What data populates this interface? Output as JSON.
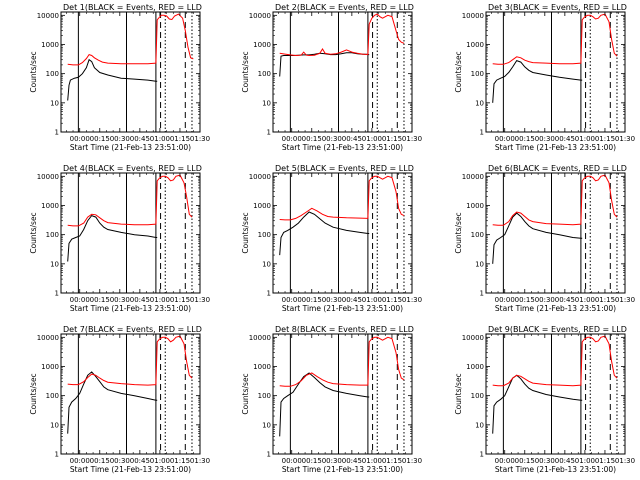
{
  "figure": {
    "ylabel": "Counts/sec",
    "xlabel": "Start Time (21-Feb-13 23:51:00)"
  },
  "common": {
    "type": "line",
    "x_unit": "minutes since 23:51:00",
    "xlim": [
      -5,
      99
    ],
    "ylim": [
      1,
      13000
    ],
    "y_scale": "log",
    "x_ticks": [
      9,
      24,
      39,
      54,
      69,
      84,
      99
    ],
    "x_tick_labels": [
      "00:00",
      "00:15",
      "00:30",
      "00:45",
      "01:00",
      "01:15",
      "01:30"
    ],
    "y_ticks": [
      1,
      10,
      100,
      1000,
      10000
    ],
    "y_tick_labels": [
      "1",
      "10",
      "100",
      "1000",
      "10000"
    ],
    "colors": {
      "events": "#000000",
      "lld": "#ff0000"
    }
  },
  "chart_data": [
    {
      "type": "line",
      "title": "Det 1(BLACK = Events, RED = LLD",
      "vlines_solid": [
        8,
        44,
        66
      ],
      "vlines_dash": [
        69.5,
        88
      ],
      "vlines_dot": [
        73,
        93
      ],
      "series": [
        {
          "name": "Events",
          "x": [
            0,
            1,
            2,
            5,
            8,
            11,
            14,
            16,
            18,
            20,
            24,
            30,
            40,
            50,
            60,
            66,
            67
          ],
          "y": [
            12,
            40,
            60,
            70,
            75,
            100,
            160,
            300,
            260,
            160,
            110,
            90,
            70,
            65,
            60,
            55,
            55
          ]
        },
        {
          "name": "LLD",
          "x": [
            0,
            4,
            8,
            11,
            14,
            16,
            18,
            20,
            23,
            26,
            30,
            40,
            50,
            60,
            66,
            67,
            69,
            70,
            72,
            74,
            76,
            78,
            80,
            83,
            86,
            88,
            90,
            92,
            94
          ],
          "y": [
            210,
            200,
            200,
            240,
            330,
            450,
            420,
            350,
            290,
            250,
            230,
            220,
            220,
            220,
            230,
            7000,
            9000,
            10000,
            10000,
            9500,
            7500,
            7200,
            9500,
            11000,
            8000,
            3000,
            800,
            350,
            320
          ]
        }
      ]
    },
    {
      "type": "line",
      "title": "Det 2(BLACK = Events, RED = LLD",
      "vlines_solid": [
        8,
        44,
        66
      ],
      "vlines_dash": [
        69.5,
        88
      ],
      "vlines_dot": [
        73,
        93
      ],
      "series": [
        {
          "name": "Events",
          "x": [
            0,
            1,
            3,
            6,
            10,
            14,
            18,
            22,
            26,
            30,
            34,
            38,
            42,
            46,
            50,
            54,
            58,
            62,
            65,
            66,
            67
          ],
          "y": [
            80,
            400,
            420,
            420,
            420,
            430,
            440,
            440,
            460,
            500,
            480,
            450,
            450,
            480,
            520,
            520,
            480,
            460,
            460,
            450,
            450
          ]
        },
        {
          "name": "LLD",
          "x": [
            0,
            4,
            8,
            12,
            16,
            18,
            20,
            22,
            26,
            30,
            32,
            34,
            38,
            42,
            46,
            50,
            54,
            58,
            62,
            66,
            67,
            69,
            71,
            73,
            75,
            77,
            79,
            81,
            84,
            87,
            89,
            91,
            93
          ],
          "y": [
            500,
            470,
            440,
            420,
            430,
            550,
            430,
            420,
            430,
            500,
            700,
            500,
            460,
            480,
            550,
            650,
            550,
            500,
            470,
            450,
            5000,
            8000,
            10000,
            11000,
            9000,
            8000,
            9000,
            10000,
            9000,
            3000,
            1500,
            1200,
            1100
          ]
        }
      ]
    },
    {
      "type": "line",
      "title": "Det 3(BLACK = Events, RED = LLD",
      "vlines_solid": [
        8,
        44,
        66
      ],
      "vlines_dash": [
        69.5,
        88
      ],
      "vlines_dot": [
        73,
        93
      ],
      "series": [
        {
          "name": "Events",
          "x": [
            0,
            1,
            3,
            6,
            9,
            12,
            15,
            18,
            21,
            24,
            27,
            30,
            40,
            50,
            60,
            66,
            67
          ],
          "y": [
            10,
            45,
            60,
            70,
            80,
            110,
            170,
            280,
            250,
            170,
            130,
            110,
            90,
            75,
            65,
            60,
            60
          ]
        },
        {
          "name": "LLD",
          "x": [
            0,
            4,
            8,
            12,
            15,
            18,
            21,
            24,
            27,
            30,
            40,
            50,
            60,
            66,
            67,
            69,
            71,
            73,
            75,
            77,
            79,
            81,
            84,
            87,
            89,
            91,
            93
          ],
          "y": [
            220,
            210,
            210,
            240,
            300,
            380,
            350,
            290,
            260,
            240,
            230,
            220,
            220,
            230,
            7000,
            9000,
            10000,
            10000,
            9000,
            7500,
            8000,
            10000,
            11000,
            6000,
            1500,
            500,
            400
          ]
        }
      ]
    },
    {
      "type": "line",
      "title": "Det 4(BLACK = Events, RED = LLD",
      "vlines_solid": [
        8,
        44,
        66
      ],
      "vlines_dash": [
        69.5,
        88
      ],
      "vlines_dot": [
        73,
        93
      ],
      "series": [
        {
          "name": "Events",
          "x": [
            0,
            1,
            3,
            6,
            9,
            12,
            15,
            18,
            21,
            24,
            27,
            30,
            40,
            50,
            60,
            66,
            67
          ],
          "y": [
            12,
            50,
            70,
            80,
            90,
            150,
            300,
            450,
            400,
            250,
            180,
            150,
            120,
            100,
            90,
            80,
            80
          ]
        },
        {
          "name": "LLD",
          "x": [
            0,
            4,
            8,
            12,
            15,
            18,
            21,
            24,
            27,
            30,
            40,
            50,
            60,
            66,
            67,
            69,
            71,
            73,
            75,
            77,
            79,
            81,
            84,
            87,
            89,
            91,
            93
          ],
          "y": [
            210,
            200,
            200,
            250,
            400,
            500,
            480,
            380,
            300,
            260,
            230,
            220,
            220,
            230,
            7000,
            9000,
            10000,
            10000,
            9000,
            7000,
            7500,
            10000,
            11000,
            6000,
            2000,
            500,
            400
          ]
        }
      ]
    },
    {
      "type": "line",
      "title": "Det 5(BLACK = Events, RED = LLD",
      "vlines_solid": [
        8,
        44,
        66
      ],
      "vlines_dash": [
        69.5,
        88
      ],
      "vlines_dot": [
        73,
        93
      ],
      "series": [
        {
          "name": "Events",
          "x": [
            0,
            1,
            3,
            6,
            10,
            14,
            18,
            22,
            26,
            30,
            34,
            40,
            50,
            60,
            66,
            67
          ],
          "y": [
            20,
            80,
            120,
            140,
            180,
            250,
            400,
            600,
            500,
            350,
            250,
            180,
            140,
            120,
            110,
            110
          ]
        },
        {
          "name": "LLD",
          "x": [
            0,
            4,
            8,
            12,
            16,
            20,
            24,
            28,
            32,
            36,
            40,
            50,
            60,
            66,
            67,
            69,
            71,
            73,
            75,
            77,
            79,
            81,
            84,
            87,
            89,
            91,
            93
          ],
          "y": [
            330,
            320,
            320,
            360,
            450,
            600,
            800,
            650,
            500,
            420,
            400,
            380,
            370,
            360,
            7000,
            9000,
            10000,
            10000,
            9000,
            8000,
            9000,
            10000,
            9000,
            3000,
            800,
            500,
            450
          ]
        }
      ]
    },
    {
      "type": "line",
      "title": "Det 6(BLACK = Events, RED = LLD",
      "vlines_solid": [
        8,
        44,
        66
      ],
      "vlines_dash": [
        69.5,
        88
      ],
      "vlines_dot": [
        73,
        93
      ],
      "series": [
        {
          "name": "Events",
          "x": [
            0,
            1,
            3,
            6,
            9,
            12,
            15,
            18,
            21,
            24,
            27,
            30,
            40,
            50,
            60,
            66,
            67
          ],
          "y": [
            10,
            45,
            65,
            80,
            100,
            200,
            400,
            550,
            420,
            280,
            200,
            160,
            120,
            100,
            80,
            75,
            75
          ]
        },
        {
          "name": "LLD",
          "x": [
            0,
            4,
            8,
            12,
            15,
            18,
            21,
            24,
            27,
            30,
            40,
            50,
            60,
            66,
            67,
            69,
            71,
            73,
            75,
            77,
            79,
            81,
            84,
            87,
            89,
            91,
            93
          ],
          "y": [
            220,
            210,
            210,
            280,
            450,
            600,
            550,
            420,
            320,
            280,
            240,
            230,
            220,
            230,
            7000,
            9000,
            10000,
            10000,
            9000,
            7000,
            7500,
            10000,
            11000,
            6000,
            1500,
            500,
            400
          ]
        }
      ]
    },
    {
      "type": "line",
      "title": "Det 7(BLACK = Events, RED = LLD",
      "vlines_solid": [
        8,
        44,
        66
      ],
      "vlines_dash": [
        69.5,
        88
      ],
      "vlines_dot": [
        73,
        93
      ],
      "series": [
        {
          "name": "Events",
          "x": [
            0,
            1,
            3,
            6,
            9,
            12,
            15,
            18,
            21,
            24,
            27,
            30,
            40,
            50,
            60,
            66,
            67
          ],
          "y": [
            5,
            40,
            60,
            80,
            120,
            250,
            500,
            650,
            450,
            300,
            200,
            160,
            120,
            100,
            80,
            70,
            70
          ]
        },
        {
          "name": "LLD",
          "x": [
            0,
            4,
            8,
            12,
            15,
            18,
            21,
            24,
            27,
            30,
            40,
            50,
            60,
            66,
            67,
            69,
            71,
            73,
            75,
            77,
            79,
            81,
            84,
            87,
            89,
            91,
            93
          ],
          "y": [
            250,
            240,
            240,
            300,
            420,
            550,
            500,
            400,
            330,
            290,
            260,
            240,
            230,
            240,
            7000,
            9000,
            10000,
            10000,
            9000,
            7000,
            8000,
            10000,
            11000,
            6000,
            1500,
            500,
            400
          ]
        }
      ]
    },
    {
      "type": "line",
      "title": "Det 8(BLACK = Events, RED = LLD",
      "vlines_solid": [
        8,
        44,
        66
      ],
      "vlines_dash": [
        69.5,
        88
      ],
      "vlines_dot": [
        73,
        93
      ],
      "series": [
        {
          "name": "Events",
          "x": [
            0,
            1,
            3,
            6,
            10,
            14,
            18,
            22,
            26,
            30,
            34,
            40,
            50,
            60,
            66,
            67
          ],
          "y": [
            4,
            60,
            80,
            100,
            130,
            250,
            450,
            600,
            420,
            280,
            200,
            150,
            120,
            100,
            90,
            90
          ]
        },
        {
          "name": "LLD",
          "x": [
            0,
            4,
            8,
            12,
            16,
            20,
            24,
            28,
            32,
            36,
            40,
            50,
            60,
            66,
            67,
            69,
            71,
            73,
            75,
            77,
            79,
            81,
            84,
            87,
            89,
            91,
            93
          ],
          "y": [
            220,
            210,
            210,
            240,
            320,
            500,
            600,
            450,
            350,
            290,
            260,
            240,
            230,
            230,
            7000,
            9000,
            10000,
            10000,
            9000,
            8000,
            9000,
            10000,
            9000,
            3000,
            800,
            400,
            350
          ]
        }
      ]
    },
    {
      "type": "line",
      "title": "Det 9(BLACK = Events, RED = LLD",
      "vlines_solid": [
        8,
        44,
        66
      ],
      "vlines_dash": [
        69.5,
        88
      ],
      "vlines_dot": [
        73,
        93
      ],
      "series": [
        {
          "name": "Events",
          "x": [
            0,
            1,
            3,
            6,
            9,
            12,
            15,
            18,
            21,
            24,
            27,
            30,
            40,
            50,
            60,
            66,
            67
          ],
          "y": [
            5,
            45,
            60,
            75,
            100,
            200,
            400,
            500,
            380,
            250,
            180,
            150,
            110,
            90,
            75,
            70,
            70
          ]
        },
        {
          "name": "LLD",
          "x": [
            0,
            4,
            8,
            12,
            15,
            18,
            21,
            24,
            27,
            30,
            40,
            50,
            60,
            66,
            67,
            69,
            71,
            73,
            75,
            77,
            79,
            81,
            84,
            87,
            89,
            91,
            93
          ],
          "y": [
            230,
            220,
            220,
            270,
            400,
            500,
            460,
            380,
            310,
            270,
            240,
            230,
            220,
            230,
            7000,
            9000,
            10000,
            10000,
            9000,
            7000,
            7500,
            10000,
            11000,
            6000,
            1500,
            500,
            400
          ]
        }
      ]
    }
  ]
}
